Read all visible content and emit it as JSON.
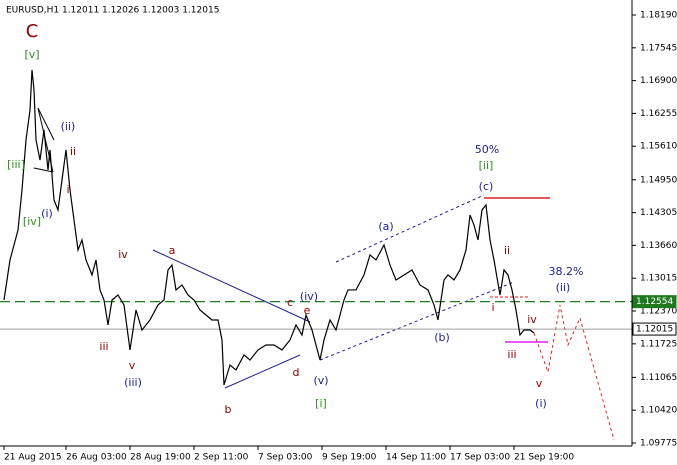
{
  "chart_data": {
    "type": "line",
    "title": "EURUSD,H1  1.12011 1.12026 1.12003 1.12015",
    "series": [
      {
        "name": "EURUSD",
        "color": "#000000",
        "x": [
          4,
          10,
          18,
          22,
          26,
          30,
          32,
          34,
          36,
          40,
          44,
          48,
          50,
          54,
          58,
          62,
          66,
          70,
          74,
          78,
          82,
          86,
          92,
          96,
          100,
          104,
          108,
          112,
          118,
          124,
          130,
          136,
          142,
          150,
          158,
          164,
          168,
          172,
          176,
          182,
          188,
          194,
          200,
          206,
          212,
          218,
          222,
          224,
          230,
          236,
          244,
          250,
          258,
          266,
          274,
          282,
          290,
          296,
          302,
          306,
          312,
          316,
          320,
          324,
          330,
          336,
          340,
          344,
          348,
          356,
          364,
          370,
          376,
          384,
          390,
          396,
          404,
          412,
          420,
          428,
          434,
          438,
          444,
          448,
          454,
          460,
          466,
          470,
          474,
          478,
          482,
          486,
          490,
          494,
          500,
          504,
          508,
          512,
          516,
          520,
          524,
          530,
          534
        ],
        "values": [
          1.12587,
          1.13373,
          1.13963,
          1.1475,
          1.15733,
          1.16322,
          1.17109,
          1.16716,
          1.15733,
          1.15339,
          1.15929,
          1.15143,
          1.15536,
          1.14553,
          1.14356,
          1.14946,
          1.15536,
          1.1475,
          1.1416,
          1.1357,
          1.13767,
          1.13373,
          1.13079,
          1.13373,
          1.12784,
          1.12587,
          1.12096,
          1.12587,
          1.12685,
          1.12489,
          1.11605,
          1.1239,
          1.11997,
          1.12194,
          1.12489,
          1.12587,
          1.13177,
          1.13275,
          1.12784,
          1.12882,
          1.12685,
          1.12587,
          1.1239,
          1.12292,
          1.12194,
          1.12194,
          1.11801,
          1.10916,
          1.11309,
          1.11211,
          1.11506,
          1.11407,
          1.11605,
          1.11702,
          1.11702,
          1.11605,
          1.11801,
          1.12096,
          1.11899,
          1.12292,
          1.11997,
          1.11702,
          1.11407,
          1.11801,
          1.12194,
          1.11997,
          1.12292,
          1.12587,
          1.12784,
          1.12784,
          1.13079,
          1.13472,
          1.13373,
          1.13668,
          1.13275,
          1.1298,
          1.13079,
          1.13177,
          1.12882,
          1.12784,
          1.12489,
          1.12194,
          1.1298,
          1.13079,
          1.1298,
          1.13177,
          1.1357,
          1.14258,
          1.14061,
          1.13767,
          1.14356,
          1.14455,
          1.13767,
          1.13373,
          1.12685,
          1.13177,
          1.13079,
          1.12784,
          1.1239,
          1.11899,
          1.11997,
          1.11997,
          1.11938
        ]
      }
    ],
    "xlim": [
      0,
      632
    ],
    "xticks": [
      {
        "value": 4,
        "label": "21 Aug 2015"
      },
      {
        "value": 66,
        "label": "26 Aug 03:00"
      },
      {
        "value": 130,
        "label": "28 Aug 19:00"
      },
      {
        "value": 194,
        "label": "2 Sep 11:00"
      },
      {
        "value": 258,
        "label": "7 Sep 03:00"
      },
      {
        "value": 322,
        "label": "9 Sep 19:00"
      },
      {
        "value": 386,
        "label": "14 Sep 11:00"
      },
      {
        "value": 450,
        "label": "17 Sep 03:00"
      },
      {
        "value": 514,
        "label": "21 Sep 19:00"
      }
    ],
    "ylim": [
      1.09716,
      1.18485
    ],
    "yticks": [
      {
        "value": 1.1819,
        "label": "1.18190"
      },
      1.17545,
      {
        "value": 1.169,
        "label": "1.16900"
      },
      1.16255,
      {
        "value": 1.1561,
        "label": "1.15610"
      },
      {
        "value": 1.1495,
        "label": "1.14950"
      },
      1.14305,
      {
        "value": 1.1366,
        "label": "1.13660"
      },
      1.13015,
      {
        "value": 1.1237,
        "label": "1.12370"
      },
      1.11725,
      1.11065,
      {
        "value": 1.1042,
        "label": "1.10420"
      },
      1.09775
    ],
    "levels": [
      {
        "value": 1.12554,
        "label": "1.12554",
        "color": "#1f7a1f",
        "style": "dashed"
      },
      {
        "value": 1.12015,
        "label": "1.12015",
        "color": "#a0a0a0",
        "style": "solid"
      }
    ],
    "annotations": [
      {
        "text": "C",
        "color": "#8b0000"
      },
      {
        "text": "[v]",
        "color": "#2e8b22"
      },
      {
        "text": "[iii]",
        "color": "#2e8b22"
      },
      {
        "text": "[iv]",
        "color": "#2e8b22"
      },
      {
        "text": "(i)",
        "color": "#1e1e8c"
      },
      {
        "text": "(ii)",
        "color": "#1e1e8c"
      },
      {
        "text": "ii",
        "color": "#8b0000"
      },
      {
        "text": "i",
        "color": "#8b0000"
      },
      {
        "text": "iv",
        "color": "#8b0000"
      },
      {
        "text": "v",
        "color": "#8b0000"
      },
      {
        "text": "(iii)",
        "color": "#1e1e8c"
      },
      {
        "text": "iii",
        "color": "#8b0000"
      },
      {
        "text": "a",
        "color": "#8b0000"
      },
      {
        "text": "b",
        "color": "#8b0000"
      },
      {
        "text": "c",
        "color": "#8b0000"
      },
      {
        "text": "d",
        "color": "#8b0000"
      },
      {
        "text": "e",
        "color": "#8b0000"
      },
      {
        "text": "(iv)",
        "color": "#1e1e8c"
      },
      {
        "text": "(v)",
        "color": "#1e1e8c"
      },
      {
        "text": "[i]",
        "color": "#2e8b22"
      },
      {
        "text": "(a)",
        "color": "#1e1e8c"
      },
      {
        "text": "(b)",
        "color": "#1e1e8c"
      },
      {
        "text": "50%",
        "color": "#1e1e8c"
      },
      {
        "text": "[ii]",
        "color": "#2e8b22"
      },
      {
        "text": "(c)",
        "color": "#1e1e8c"
      },
      {
        "text": "ii",
        "color": "#8b0000"
      },
      {
        "text": "i",
        "color": "#8b0000"
      },
      {
        "text": "iv",
        "color": "#8b0000"
      },
      {
        "text": "iii",
        "color": "#8b0000"
      },
      {
        "text": "v",
        "color": "#8b0000"
      },
      {
        "text": "(i)",
        "color": "#1e1e8c"
      },
      {
        "text": "38.2%",
        "color": "#1e1e8c"
      },
      {
        "text": "(ii)",
        "color": "#1e1e8c"
      }
    ]
  }
}
